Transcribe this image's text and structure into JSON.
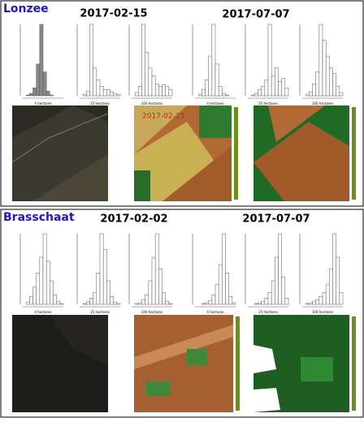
{
  "panels": [
    {
      "site": "Lonzee",
      "dates": [
        "2017-02-15",
        "2017-07-07"
      ],
      "map_label": "2017-02-15",
      "histograms": [
        {
          "xlabel": "4 hectares",
          "counts": [
            0,
            1,
            3,
            10,
            40,
            90,
            30,
            6,
            1,
            0,
            0,
            0
          ]
        },
        {
          "xlabel": "25 hectares",
          "counts": [
            0,
            2,
            6,
            90,
            35,
            20,
            12,
            8,
            8,
            5,
            3,
            2
          ]
        },
        {
          "xlabel": "100 hectares",
          "counts": [
            0,
            4,
            12,
            90,
            55,
            35,
            25,
            15,
            12,
            14,
            12,
            8
          ]
        },
        {
          "xlabel": "4 hectares",
          "counts": [
            0,
            2,
            8,
            20,
            50,
            90,
            40,
            12,
            3,
            1,
            0,
            0
          ]
        },
        {
          "xlabel": "25 hectares",
          "counts": [
            0,
            1,
            3,
            8,
            12,
            20,
            90,
            25,
            35,
            18,
            22,
            10
          ]
        },
        {
          "xlabel": "100 hectares",
          "counts": [
            0,
            2,
            5,
            15,
            30,
            90,
            70,
            50,
            35,
            28,
            12,
            4
          ]
        }
      ]
    },
    {
      "site": "Brasschaat",
      "dates": [
        "2017-02-02",
        "2017-07-07"
      ],
      "histograms": [
        {
          "xlabel": "4 hectares",
          "counts": [
            0,
            3,
            10,
            22,
            40,
            60,
            90,
            55,
            30,
            12,
            4,
            1
          ]
        },
        {
          "xlabel": "25 hectares",
          "counts": [
            0,
            1,
            3,
            8,
            15,
            40,
            90,
            70,
            30,
            10,
            3,
            1
          ]
        },
        {
          "xlabel": "100 hectares",
          "counts": [
            0,
            1,
            2,
            6,
            12,
            30,
            60,
            90,
            45,
            15,
            4,
            1
          ]
        },
        {
          "xlabel": "4 hectares",
          "counts": [
            0,
            0,
            1,
            2,
            5,
            12,
            25,
            50,
            90,
            40,
            10,
            2
          ]
        },
        {
          "xlabel": "25 hectares",
          "counts": [
            0,
            0,
            1,
            2,
            4,
            8,
            15,
            30,
            60,
            90,
            35,
            8
          ]
        },
        {
          "xlabel": "100 hectares",
          "counts": [
            0,
            1,
            2,
            4,
            6,
            10,
            15,
            25,
            45,
            90,
            60,
            15
          ]
        }
      ]
    }
  ]
}
